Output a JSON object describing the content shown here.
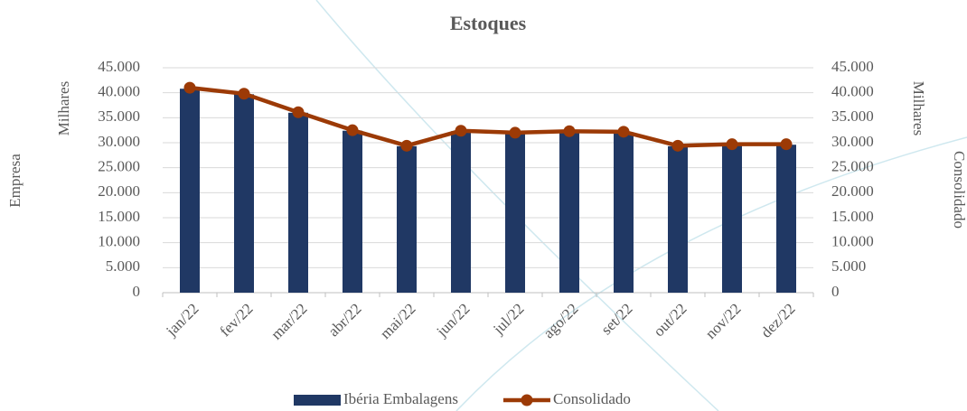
{
  "chart_data": {
    "type": "combo",
    "title": "Estoques",
    "y_label": "Empresa",
    "y_unit_label": "Milhares",
    "y2_label": "Consolidado",
    "y2_unit_label": "Milhares",
    "categories": [
      "jan/22",
      "fev/22",
      "mar/22",
      "abr/22",
      "mai/22",
      "jun/22",
      "jul/22",
      "ago/22",
      "set/22",
      "out/22",
      "nov/22",
      "dez/22"
    ],
    "series": [
      {
        "name": "Ibéria Embalagens",
        "type": "bar",
        "color": "#203864",
        "values": [
          40800,
          39700,
          36000,
          32400,
          29300,
          32300,
          31900,
          32200,
          32100,
          29300,
          29600,
          29600
        ]
      },
      {
        "name": "Consolidado",
        "type": "line",
        "axis": "y2",
        "color": "#9c3a06",
        "values": [
          41000,
          39800,
          36100,
          32500,
          29400,
          32400,
          32000,
          32300,
          32200,
          29400,
          29700,
          29700
        ]
      }
    ],
    "ylim": [
      0,
      45000
    ],
    "yticks": [
      {
        "value": 0,
        "label": "0"
      },
      {
        "value": 5000,
        "label": "5.000"
      },
      {
        "value": 10000,
        "label": "10.000"
      },
      {
        "value": 15000,
        "label": "15.000"
      },
      {
        "value": 20000,
        "label": "20.000"
      },
      {
        "value": 25000,
        "label": "25.000"
      },
      {
        "value": 30000,
        "label": "30.000"
      },
      {
        "value": 35000,
        "label": "35.000"
      },
      {
        "value": 40000,
        "label": "40.000"
      },
      {
        "value": 45000,
        "label": "45.000"
      }
    ],
    "y2lim": [
      0,
      45000
    ],
    "y2ticks": [
      {
        "value": 0,
        "label": "0"
      },
      {
        "value": 5000,
        "label": "5.000"
      },
      {
        "value": 10000,
        "label": "10.000"
      },
      {
        "value": 15000,
        "label": "15.000"
      },
      {
        "value": 20000,
        "label": "20.000"
      },
      {
        "value": 25000,
        "label": "25.000"
      },
      {
        "value": 30000,
        "label": "30.000"
      },
      {
        "value": 35000,
        "label": "35.000"
      },
      {
        "value": 40000,
        "label": "40.000"
      },
      {
        "value": 45000,
        "label": "45.000"
      }
    ],
    "grid": true,
    "legend": "bottom"
  }
}
